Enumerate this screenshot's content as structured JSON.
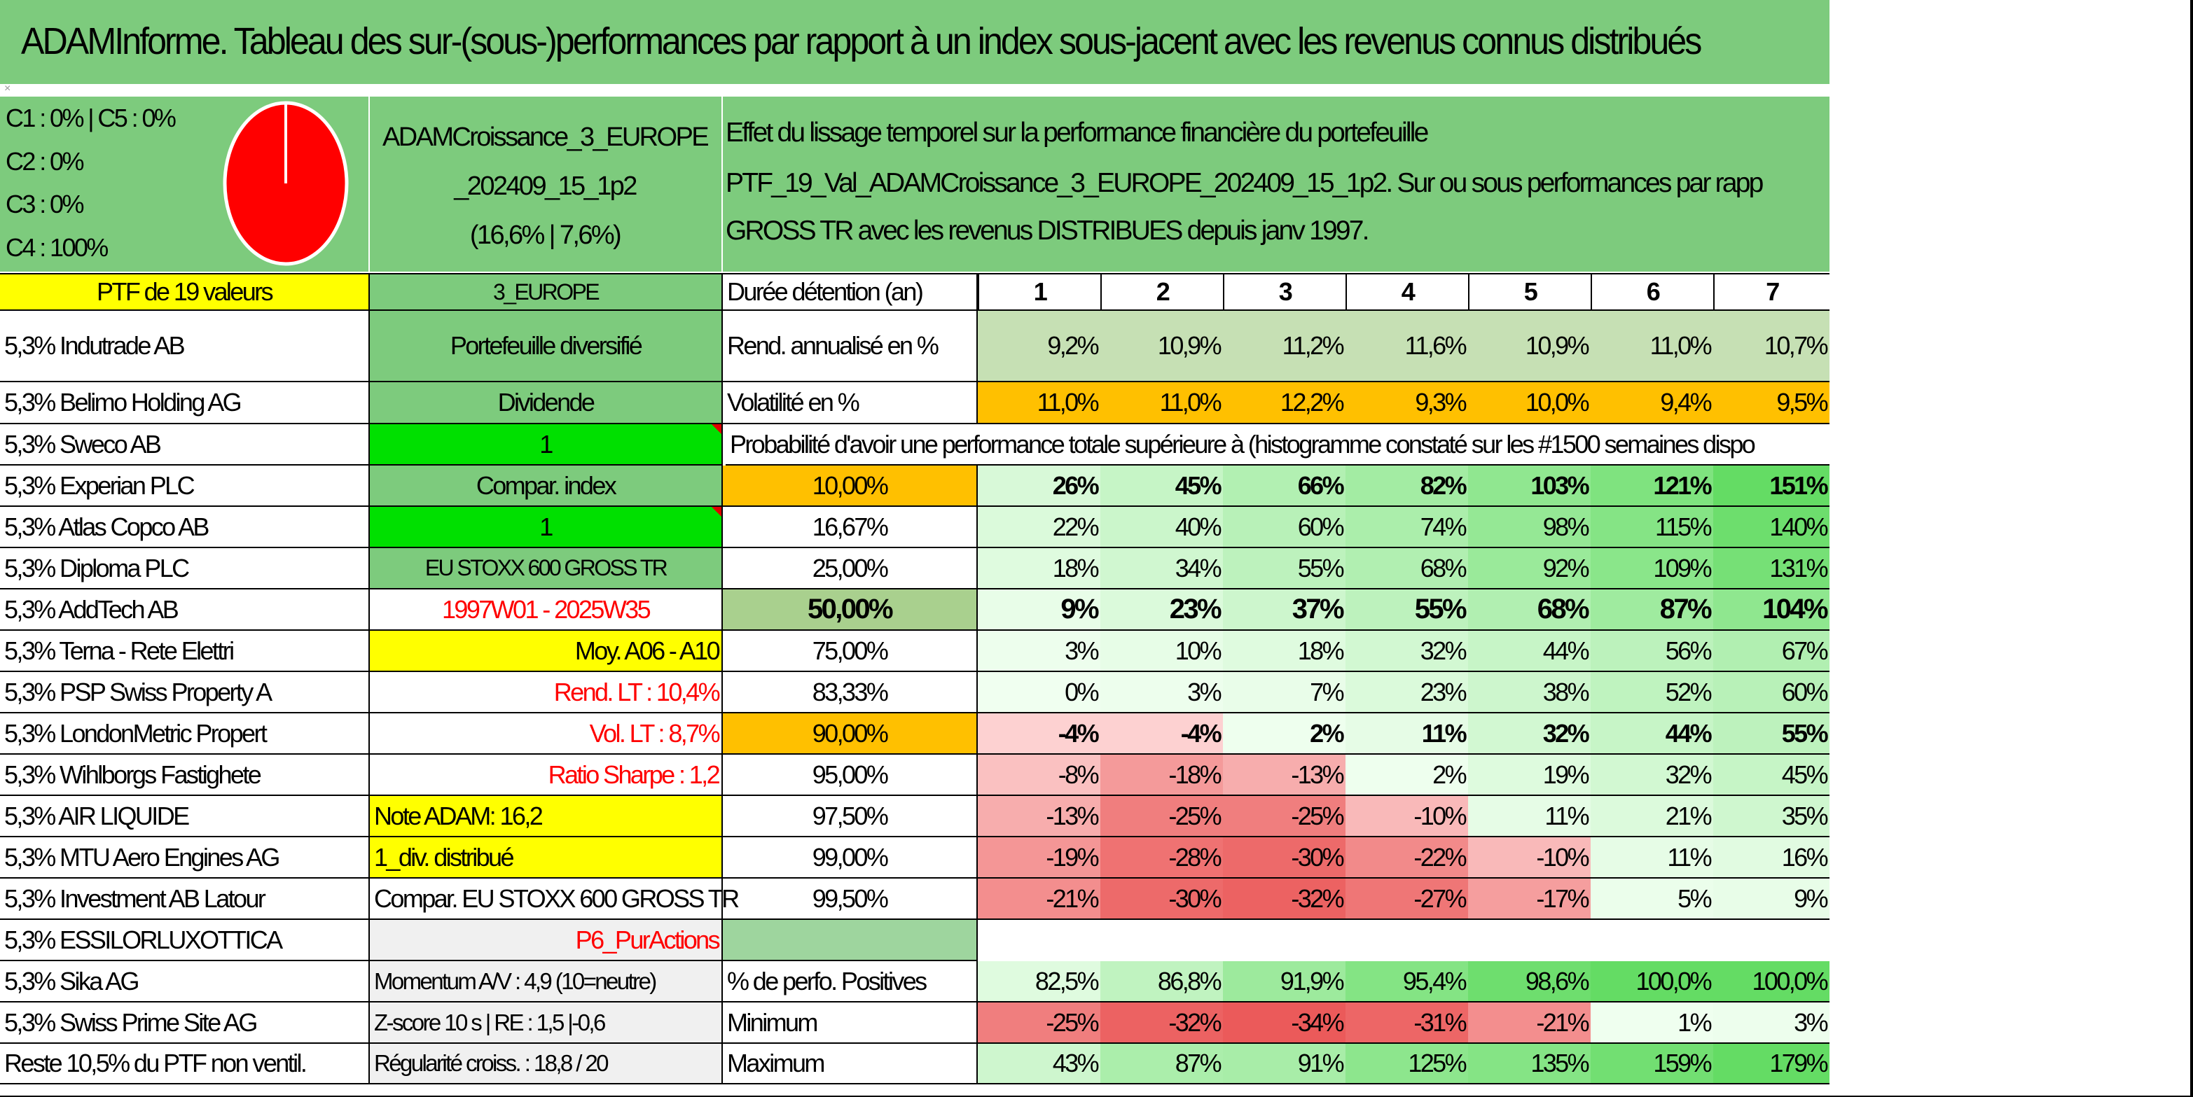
{
  "title": "ADAMInforme. Tableau des sur-(sous-)performances par rapport à un index sous-jacent avec les revenus connus distribués",
  "header": {
    "legend": [
      "C1 : 0% | C5 : 0%",
      "C2 : 0%",
      "C3 : 0%",
      "C4 : 100%"
    ],
    "pie": {
      "color": "#ff0000",
      "stroke": "#ffffff"
    },
    "ptf_name_lines": [
      "ADAMCroissance_3_EUROPE",
      "_202409_15_1p2",
      "(16,6% | 7,6%)"
    ],
    "effect_lines": [
      "Effet du lissage temporel sur la performance financière du portefeuille",
      "PTF_19_Val_ADAMCroissance_3_EUROPE_202409_15_1p2. Sur ou sous performances par rapp",
      "GROSS TR avec les revenus DISTRIBUES depuis janv 1997."
    ]
  },
  "holdings_header": "PTF de 19 valeurs",
  "holdings": [
    "5,3% Indutrade AB",
    "5,3% Belimo Holding AG",
    "5,3% Sweco AB",
    "5,3% Experian PLC",
    "5,3% Atlas Copco AB",
    "5,3% Diploma PLC",
    "5,3% AddTech AB",
    "5,3% Terna - Rete Elettri",
    "5,3% PSP Swiss Property A",
    "5,3% LondonMetric Propert",
    "5,3% Wihlborgs Fastighete",
    "5,3% AIR LIQUIDE",
    "5,3% MTU Aero Engines AG",
    "5,3% Investment AB Latour",
    "5,3% ESSILORLUXOTTICA",
    "5,3% Sika AG",
    "5,3% Swiss Prime Site AG",
    "Reste 10,5% du PTF non ventil."
  ],
  "info": {
    "region": "3_EUROPE",
    "type": "Portefeuille diversifié",
    "dividend": "Dividende",
    "one_a": "1",
    "compar": "Compar. index",
    "one_b": "1",
    "index_name": "EU STOXX 600 GROSS TR",
    "period": "1997W01 - 2025W35",
    "moy": "Moy. A06 - A10",
    "rend": "Rend. LT : 10,4%",
    "vol": "Vol. LT : 8,7%",
    "sharpe": "Ratio Sharpe : 1,2",
    "note": "Note ADAM: 16,2",
    "div": "1_div. distribué",
    "compar_full": "Compar. EU STOXX 600 GROSS TR",
    "p6": "P6_PurActions",
    "momentum": "Momentum A/V : 4,9 (10=neutre)",
    "zscore": "Z-score 10 s | RE : 1,5 |-0,6",
    "regularite": "Régularité croiss. : 18,8 / 20"
  },
  "stats": {
    "duree_label": "Durée détention (an)",
    "years": [
      "1",
      "2",
      "3",
      "4",
      "5",
      "6",
      "7"
    ],
    "rend_label": "Rend. annualisé en %",
    "rend": [
      "9,2%",
      "10,9%",
      "11,2%",
      "11,6%",
      "10,9%",
      "11,0%",
      "10,7%"
    ],
    "vol_label": "Volatilité en %",
    "vol": [
      "11,0%",
      "11,0%",
      "12,2%",
      "9,3%",
      "10,0%",
      "9,4%",
      "9,5%"
    ],
    "prob_title": "Probabilité d'avoir une performance totale supérieure à (histogramme constaté sur les #1500 semaines dispo",
    "prob_rows": [
      {
        "p": "10,00%",
        "v": [
          "26%",
          "45%",
          "66%",
          "82%",
          "103%",
          "121%",
          "151%"
        ],
        "bold": true
      },
      {
        "p": "16,67%",
        "v": [
          "22%",
          "40%",
          "60%",
          "74%",
          "98%",
          "115%",
          "140%"
        ],
        "bold": false
      },
      {
        "p": "25,00%",
        "v": [
          "18%",
          "34%",
          "55%",
          "68%",
          "92%",
          "109%",
          "131%"
        ],
        "bold": false
      },
      {
        "p": "50,00%",
        "v": [
          "9%",
          "23%",
          "37%",
          "55%",
          "68%",
          "87%",
          "104%"
        ],
        "bold": true
      },
      {
        "p": "75,00%",
        "v": [
          "3%",
          "10%",
          "18%",
          "32%",
          "44%",
          "56%",
          "67%"
        ],
        "bold": false
      },
      {
        "p": "83,33%",
        "v": [
          "0%",
          "3%",
          "7%",
          "23%",
          "38%",
          "52%",
          "60%"
        ],
        "bold": false
      },
      {
        "p": "90,00%",
        "v": [
          "-4%",
          "-4%",
          "2%",
          "11%",
          "32%",
          "44%",
          "55%"
        ],
        "bold": true
      },
      {
        "p": "95,00%",
        "v": [
          "-8%",
          "-18%",
          "-13%",
          "2%",
          "19%",
          "32%",
          "45%"
        ],
        "bold": false
      },
      {
        "p": "97,50%",
        "v": [
          "-13%",
          "-25%",
          "-25%",
          "-10%",
          "11%",
          "21%",
          "35%"
        ],
        "bold": false
      },
      {
        "p": "99,00%",
        "v": [
          "-19%",
          "-28%",
          "-30%",
          "-22%",
          "-10%",
          "11%",
          "16%"
        ],
        "bold": false
      },
      {
        "p": "99,50%",
        "v": [
          "-21%",
          "-30%",
          "-32%",
          "-27%",
          "-17%",
          "5%",
          "9%"
        ],
        "bold": false
      }
    ],
    "pos_label": "% de perfo. Positives",
    "pos": [
      "82,5%",
      "86,8%",
      "91,9%",
      "95,4%",
      "98,6%",
      "100,0%",
      "100,0%"
    ],
    "min_label": "Minimum",
    "min": [
      "-25%",
      "-32%",
      "-34%",
      "-31%",
      "-21%",
      "1%",
      "3%"
    ],
    "max_label": "Maximum",
    "max": [
      "43%",
      "87%",
      "91%",
      "125%",
      "135%",
      "159%",
      "179%"
    ]
  }
}
